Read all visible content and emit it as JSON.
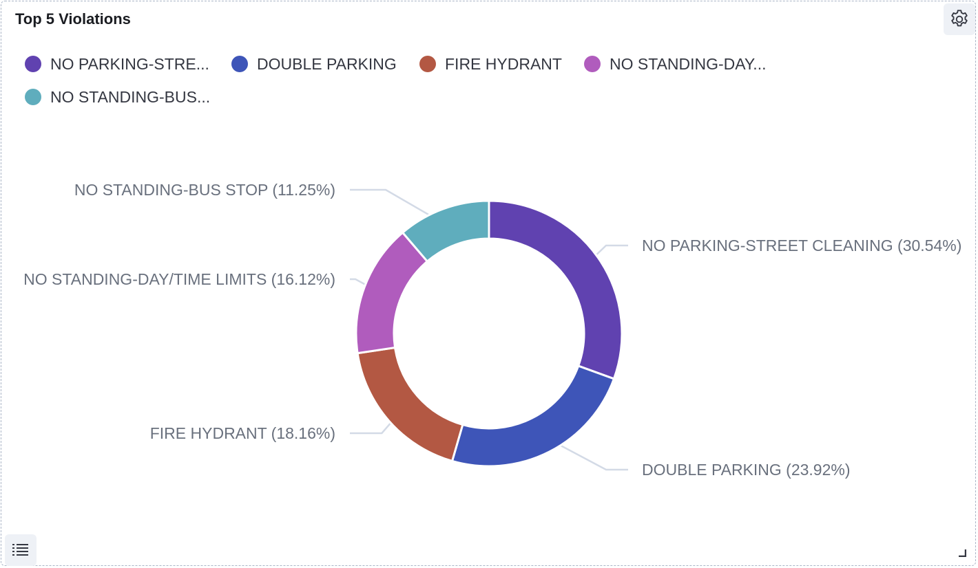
{
  "panel": {
    "title": "Top 5 Violations",
    "settings_icon": "gear-icon",
    "legend_toggle_icon": "list-icon",
    "resize_icon": "resize-handle-icon"
  },
  "legend": [
    {
      "label": "NO PARKING-STRE...",
      "color": "#6042b0"
    },
    {
      "label": "DOUBLE PARKING",
      "color": "#3e55b8"
    },
    {
      "label": "FIRE HYDRANT",
      "color": "#b35843"
    },
    {
      "label": "NO STANDING-DAY...",
      "color": "#b05cbd"
    },
    {
      "label": "NO STANDING-BUS...",
      "color": "#5fadbd"
    }
  ],
  "chart_data": {
    "type": "pie",
    "donut": true,
    "categories": [
      "NO PARKING-STREET CLEANING",
      "DOUBLE PARKING",
      "FIRE HYDRANT",
      "NO STANDING-DAY/TIME LIMITS",
      "NO STANDING-BUS STOP"
    ],
    "values": [
      30.54,
      23.92,
      18.16,
      16.12,
      11.25
    ],
    "colors": [
      "#6042b0",
      "#3e55b8",
      "#b35843",
      "#b05cbd",
      "#5fadbd"
    ],
    "labels": [
      "NO PARKING-STREET CLEANING (30.54%)",
      "DOUBLE PARKING (23.92%)",
      "FIRE HYDRANT (18.16%)",
      "NO STANDING-DAY/TIME LIMITS (16.12%)",
      "NO STANDING-BUS STOP (11.25%)"
    ]
  }
}
